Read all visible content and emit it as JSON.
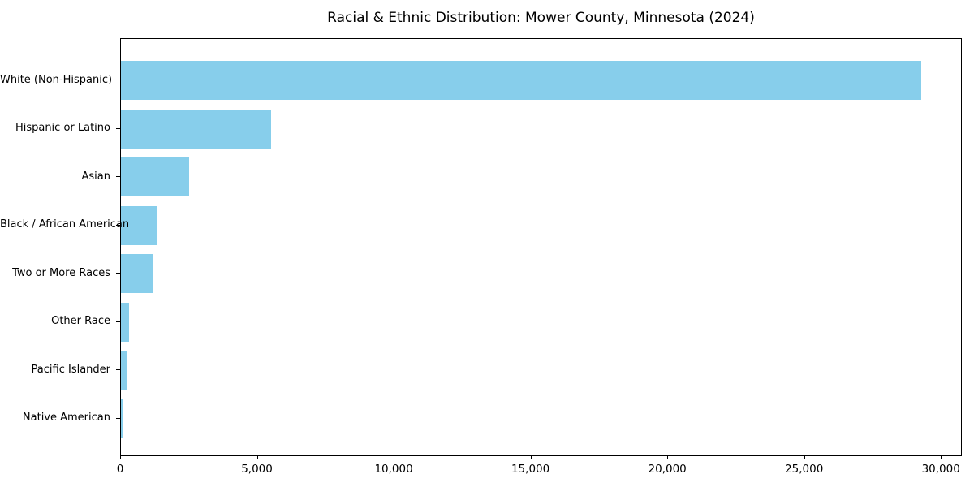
{
  "figure": {
    "background": "#ffffff",
    "text_color": "#000000",
    "spine_color": "#000000"
  },
  "chart_data": {
    "type": "bar",
    "orientation": "horizontal",
    "title": "Racial & Ethnic Distribution: Mower County, Minnesota (2024)",
    "xlabel": "",
    "ylabel": "",
    "categories": [
      "White (Non-Hispanic)",
      "Hispanic or Latino",
      "Asian",
      "Black / African American",
      "Two or More Races",
      "Other Race",
      "Pacific Islander",
      "Native American"
    ],
    "values": [
      29300,
      5500,
      2500,
      1350,
      1150,
      300,
      250,
      50
    ],
    "bar_color": "#87CEEB",
    "xlim": [
      0,
      30765
    ],
    "x_ticks": [
      0,
      5000,
      10000,
      15000,
      20000,
      25000,
      30000
    ],
    "x_tick_labels": [
      "0",
      "5,000",
      "10,000",
      "15,000",
      "20,000",
      "25,000",
      "30,000"
    ],
    "grid": false,
    "legend": "none"
  }
}
